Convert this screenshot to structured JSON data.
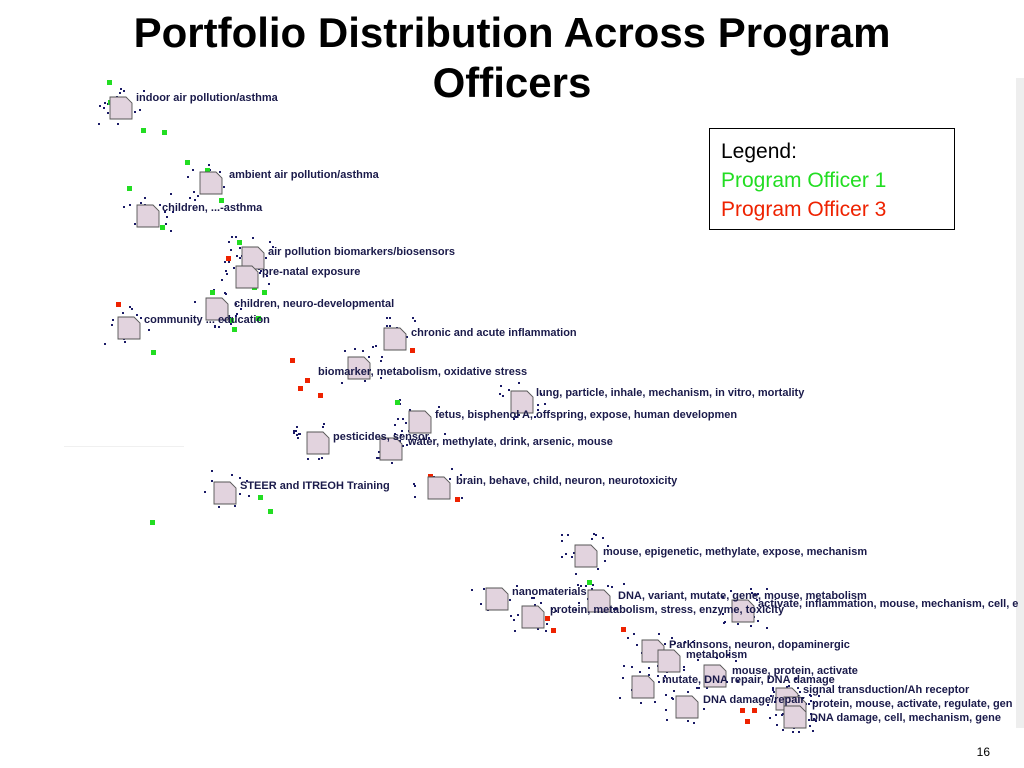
{
  "title": "Portfolio Distribution Across Program Officers",
  "legend": {
    "heading": "Legend:",
    "items": [
      {
        "label": "Program Officer 1",
        "color": "#22dd22"
      },
      {
        "label": "Program Officer 3",
        "color": "#ee2200"
      }
    ]
  },
  "slide_number": "16",
  "colors": {
    "node_fill": "#e2d3de",
    "node_stroke": "#555555",
    "dot_blue": "#1a1a66"
  },
  "topics": [
    "indoor air pollution/asthma",
    "ambient air pollution/asthma",
    "children, ...-asthma",
    "air pollution biomarkers/biosensors",
    "pre-natal exposure",
    "children, neuro-developmental",
    "community ... education",
    "chronic and acute inflammation",
    "biomarker, metabolism, oxidative stress",
    "lung, particle, inhale, mechanism, in vitro, mortality",
    "fetus, bisphenol A, offspring, expose, human developmen",
    "pesticides, sensor",
    "water, methylate, drink, arsenic, mouse",
    "brain, behave, child, neuron, neurotoxicity",
    "STEER and ITREOH Training",
    "mouse, epigenetic, methylate, expose, mechanism",
    "nanomaterials",
    "DNA, variant, mutate, gene, mouse, metabolism",
    "protein, metabolism, stress, enzyme, toxicity",
    "activate, inflammation, mouse, mechanism, cell, e",
    "Parkinsons, neuron, dopaminergic",
    "metabolism",
    "mouse, protein, activate",
    "mutate, DNA repair, DNA damage",
    "signal transduction/Ah receptor",
    "DNA damage/repair",
    "protein, mouse, activate, regulate, gen",
    "DNA damage, cell, mechanism, gene"
  ]
}
